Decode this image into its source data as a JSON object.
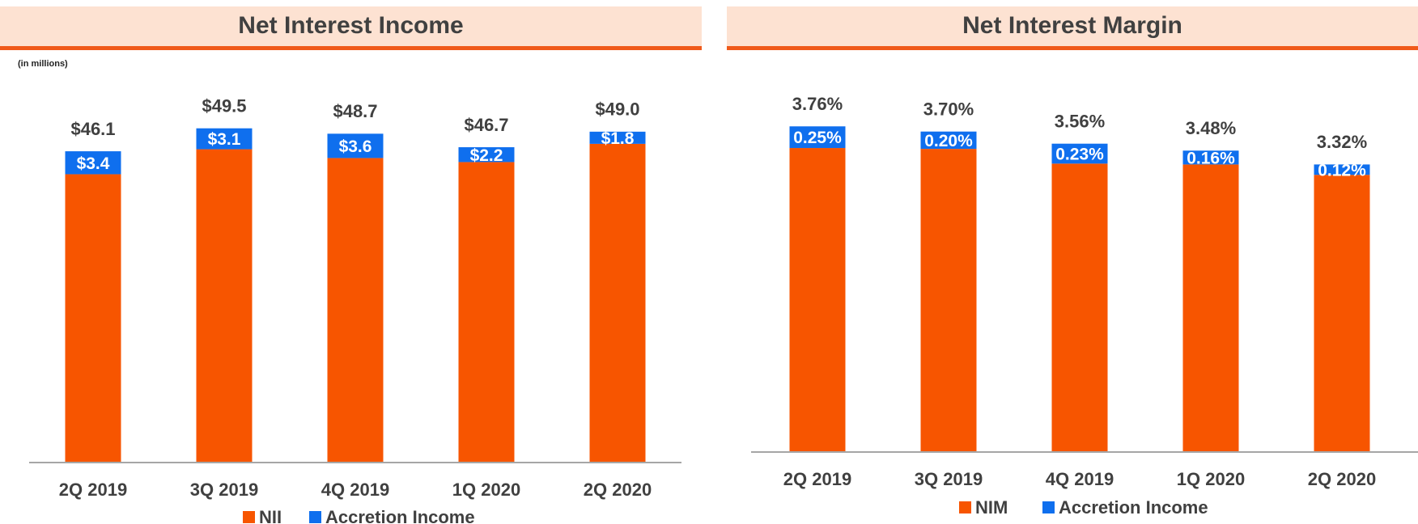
{
  "chart_data": [
    {
      "type": "bar",
      "stacked": true,
      "title": "Net Interest Income",
      "subtitle": "(in millions)",
      "categories": [
        "2Q 2019",
        "3Q 2019",
        "4Q 2019",
        "1Q 2020",
        "2Q 2020"
      ],
      "series": [
        {
          "name": "NII",
          "color": "#f75500",
          "values": [
            42.7,
            46.4,
            45.1,
            44.5,
            47.2
          ]
        },
        {
          "name": "Accretion Income",
          "color": "#0f6fee",
          "values": [
            3.4,
            3.1,
            3.6,
            2.2,
            1.8
          ],
          "value_labels": [
            "$3.4",
            "$3.1",
            "$3.6",
            "$2.2",
            "$1.8"
          ]
        }
      ],
      "totals": [
        {
          "value": 46.1,
          "label": "$46.1"
        },
        {
          "value": 49.5,
          "label": "$49.5"
        },
        {
          "value": 48.7,
          "label": "$48.7"
        },
        {
          "value": 46.7,
          "label": "$46.7"
        },
        {
          "value": 49.0,
          "label": "$49.0"
        }
      ],
      "ylim": [
        0,
        60
      ]
    },
    {
      "type": "bar",
      "stacked": true,
      "title": "Net Interest Margin",
      "categories": [
        "2Q 2019",
        "3Q 2019",
        "4Q 2019",
        "1Q 2020",
        "2Q 2020"
      ],
      "series": [
        {
          "name": "NIM",
          "color": "#f75500",
          "values": [
            3.51,
            3.5,
            3.33,
            3.32,
            3.2
          ]
        },
        {
          "name": "Accretion Income",
          "color": "#0f6fee",
          "values": [
            0.25,
            0.2,
            0.23,
            0.16,
            0.12
          ],
          "value_labels": [
            "0.25%",
            "0.20%",
            "0.23%",
            "0.16%",
            "0.12%"
          ]
        }
      ],
      "totals": [
        {
          "value": 3.76,
          "label": "3.76%"
        },
        {
          "value": 3.7,
          "label": "3.70%"
        },
        {
          "value": 3.56,
          "label": "3.56%"
        },
        {
          "value": 3.48,
          "label": "3.48%"
        },
        {
          "value": 3.32,
          "label": "3.32%"
        }
      ],
      "ylim": [
        0,
        4.5
      ]
    }
  ]
}
